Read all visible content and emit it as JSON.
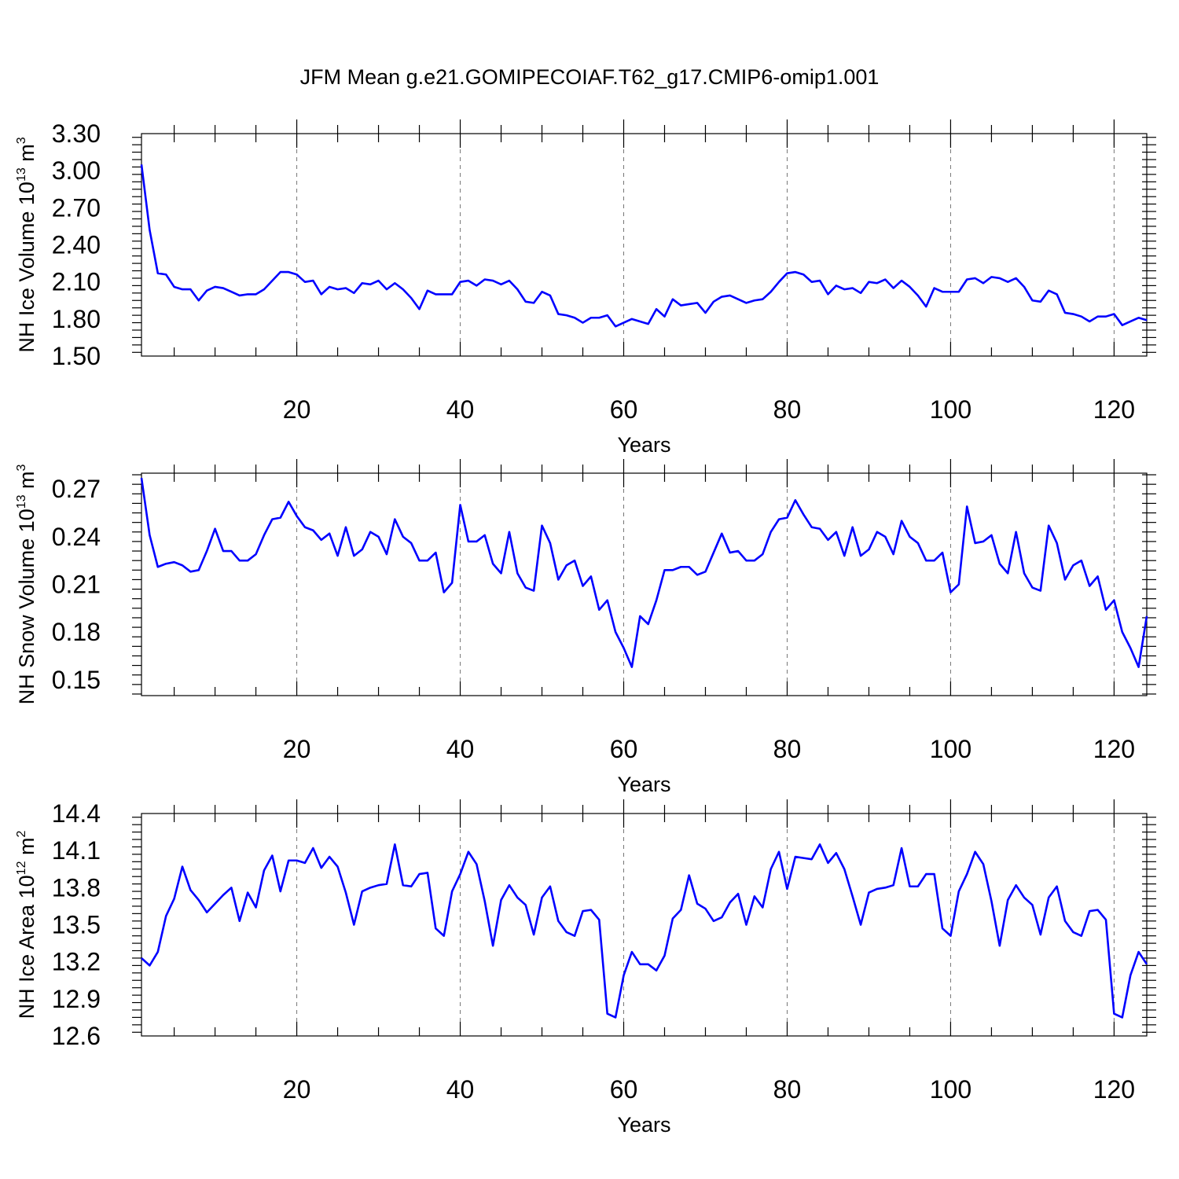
{
  "title": "JFM Mean g.e21.GOMIPECOIAF.T62_g17.CMIP6-omip1.001",
  "chart_data": [
    {
      "type": "line",
      "xlabel": "Years",
      "ylabel": "NH Ice Volume 10",
      "ylabel_exp": "13",
      "ylabel_unit": " m",
      "ylabel_unit_exp": "3",
      "xlim": [
        1,
        124
      ],
      "ylim": [
        1.5,
        3.3
      ],
      "yticks": [
        "1.50",
        "1.80",
        "2.10",
        "2.40",
        "2.70",
        "3.00",
        "3.30"
      ],
      "xticks": [
        "20",
        "40",
        "60",
        "80",
        "100",
        "120"
      ],
      "grid": "x dashed",
      "series": [
        {
          "name": "NH Ice Volume",
          "color": "#0000ff",
          "values": [
            3.05,
            2.52,
            2.17,
            2.16,
            2.06,
            2.04,
            2.04,
            1.95,
            2.03,
            2.06,
            2.05,
            2.02,
            1.99,
            2.0,
            2.0,
            2.04,
            2.11,
            2.18,
            2.18,
            2.16,
            2.1,
            2.11,
            2.0,
            2.06,
            2.04,
            2.05,
            2.01,
            2.09,
            2.08,
            2.11,
            2.04,
            2.09,
            2.04,
            1.97,
            1.88,
            2.03,
            2.0,
            2.0,
            2.0,
            2.1,
            2.11,
            2.07,
            2.12,
            2.11,
            2.08,
            2.11,
            2.04,
            1.94,
            1.93,
            2.02,
            1.99,
            1.84,
            1.83,
            1.81,
            1.77,
            1.81,
            1.81,
            1.83,
            1.74,
            1.77,
            1.8,
            1.78,
            1.76,
            1.88,
            1.82,
            1.96,
            1.91,
            1.92,
            1.93,
            1.85,
            1.94,
            1.98,
            1.99,
            1.96,
            1.93,
            1.95,
            1.96,
            2.02,
            2.1,
            2.17,
            2.18,
            2.16,
            2.1,
            2.11,
            2.0,
            2.07,
            2.04,
            2.05,
            2.01,
            2.1,
            2.09,
            2.12,
            2.05,
            2.11,
            2.06,
            1.99,
            1.9,
            2.05,
            2.02,
            2.02,
            2.02,
            2.12,
            2.13,
            2.09,
            2.14,
            2.13,
            2.1,
            2.13,
            2.06,
            1.95,
            1.94,
            2.03,
            2.0,
            1.85,
            1.84,
            1.82,
            1.78,
            1.82,
            1.82,
            1.84,
            1.75,
            1.78,
            1.81,
            1.79
          ]
        }
      ]
    },
    {
      "type": "line",
      "xlabel": "Years",
      "ylabel": "NH Snow Volume 10",
      "ylabel_exp": "13",
      "ylabel_unit": " m",
      "ylabel_unit_exp": "3",
      "xlim": [
        1,
        124
      ],
      "ylim": [
        0.14,
        0.28
      ],
      "yticks": [
        "0.15",
        "0.18",
        "0.21",
        "0.24",
        "0.27"
      ],
      "xticks": [
        "20",
        "40",
        "60",
        "80",
        "100",
        "120"
      ],
      "grid": "x dashed",
      "series": [
        {
          "name": "NH Snow Volume",
          "color": "#0000ff",
          "values": [
            0.277,
            0.241,
            0.221,
            0.223,
            0.224,
            0.222,
            0.218,
            0.219,
            0.231,
            0.245,
            0.231,
            0.231,
            0.225,
            0.225,
            0.229,
            0.241,
            0.251,
            0.252,
            0.262,
            0.253,
            0.246,
            0.244,
            0.238,
            0.242,
            0.228,
            0.246,
            0.228,
            0.232,
            0.243,
            0.24,
            0.229,
            0.251,
            0.24,
            0.236,
            0.225,
            0.225,
            0.23,
            0.205,
            0.211,
            0.26,
            0.237,
            0.237,
            0.241,
            0.223,
            0.217,
            0.243,
            0.217,
            0.208,
            0.206,
            0.247,
            0.236,
            0.213,
            0.222,
            0.225,
            0.209,
            0.215,
            0.194,
            0.2,
            0.18,
            0.17,
            0.158,
            0.19,
            0.185,
            0.2,
            0.219,
            0.219,
            0.221,
            0.221,
            0.216,
            0.218,
            0.23,
            0.242,
            0.23,
            0.231,
            0.225,
            0.225,
            0.229,
            0.243,
            0.251,
            0.252,
            0.263,
            0.254,
            0.246,
            0.245,
            0.238,
            0.243,
            0.228,
            0.246,
            0.228,
            0.232,
            0.243,
            0.24,
            0.229,
            0.25,
            0.24,
            0.236,
            0.225,
            0.225,
            0.23,
            0.205,
            0.21,
            0.259,
            0.236,
            0.237,
            0.241,
            0.223,
            0.217,
            0.243,
            0.217,
            0.208,
            0.206,
            0.247,
            0.236,
            0.213,
            0.222,
            0.225,
            0.209,
            0.215,
            0.194,
            0.2,
            0.18,
            0.17,
            0.158,
            0.19
          ]
        }
      ]
    },
    {
      "type": "line",
      "xlabel": "Years",
      "ylabel": "NH Ice Area 10",
      "ylabel_exp": "12",
      "ylabel_unit": " m",
      "ylabel_unit_exp": "2",
      "xlim": [
        1,
        124
      ],
      "ylim": [
        12.6,
        14.4
      ],
      "yticks": [
        "12.6",
        "12.9",
        "13.2",
        "13.5",
        "13.8",
        "14.1",
        "14.4"
      ],
      "xticks": [
        "20",
        "40",
        "60",
        "80",
        "100",
        "120"
      ],
      "grid": "x dashed",
      "series": [
        {
          "name": "NH Ice Area",
          "color": "#0000ff",
          "values": [
            13.23,
            13.17,
            13.28,
            13.57,
            13.71,
            13.97,
            13.78,
            13.7,
            13.6,
            13.67,
            13.74,
            13.8,
            13.53,
            13.76,
            13.64,
            13.94,
            14.06,
            13.77,
            14.02,
            14.02,
            14.0,
            14.12,
            13.96,
            14.05,
            13.97,
            13.76,
            13.5,
            13.77,
            13.8,
            13.82,
            13.83,
            14.15,
            13.82,
            13.81,
            13.91,
            13.92,
            13.47,
            13.41,
            13.77,
            13.91,
            14.09,
            13.99,
            13.69,
            13.33,
            13.7,
            13.82,
            13.72,
            13.66,
            13.42,
            13.72,
            13.81,
            13.53,
            13.44,
            13.41,
            13.61,
            13.62,
            13.54,
            12.78,
            12.75,
            13.09,
            13.28,
            13.18,
            13.18,
            13.13,
            13.25,
            13.55,
            13.62,
            13.9,
            13.67,
            13.63,
            13.53,
            13.56,
            13.68,
            13.75,
            13.5,
            13.73,
            13.64,
            13.95,
            14.09,
            13.79,
            14.05,
            14.04,
            14.03,
            14.15,
            14.0,
            14.08,
            13.95,
            13.73,
            13.5,
            13.76,
            13.79,
            13.8,
            13.82,
            14.12,
            13.81,
            13.81,
            13.91,
            13.91,
            13.47,
            13.41,
            13.77,
            13.91,
            14.09,
            13.99,
            13.69,
            13.33,
            13.7,
            13.82,
            13.72,
            13.66,
            13.42,
            13.72,
            13.81,
            13.53,
            13.44,
            13.41,
            13.61,
            13.62,
            13.54,
            12.78,
            12.75,
            13.09,
            13.28,
            13.18
          ]
        }
      ]
    }
  ]
}
